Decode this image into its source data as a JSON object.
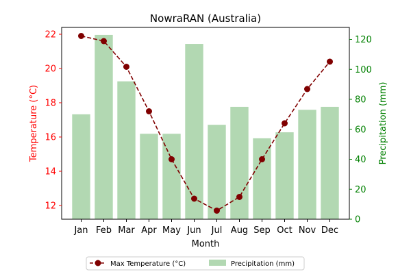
{
  "chart_data": {
    "type": "bar+line",
    "title": "NowraRAN (Australia)",
    "xlabel": "Month",
    "categories": [
      "Jan",
      "Feb",
      "Mar",
      "Apr",
      "May",
      "Jun",
      "Jul",
      "Aug",
      "Sep",
      "Oct",
      "Nov",
      "Dec"
    ],
    "left_axis": {
      "label": "Temperature (°C)",
      "color": "#ff0000",
      "ylim": [
        11.2,
        22.4
      ],
      "ticks": [
        12,
        14,
        16,
        18,
        20,
        22
      ]
    },
    "right_axis": {
      "label": "Precipitation (mm)",
      "color": "#008000",
      "ylim": [
        0,
        128
      ],
      "ticks": [
        0,
        20,
        40,
        60,
        80,
        100,
        120
      ]
    },
    "series": [
      {
        "name": "Max Temperature (°C)",
        "type": "line",
        "axis": "left",
        "color": "#800000",
        "linestyle": "dashed",
        "marker": "circle",
        "values": [
          21.9,
          21.6,
          20.1,
          17.5,
          14.7,
          12.4,
          11.7,
          12.5,
          14.7,
          16.8,
          18.8,
          20.4
        ]
      },
      {
        "name": "Precipitation (mm)",
        "type": "bar",
        "axis": "right",
        "color": "#b2d8b2",
        "values": [
          70,
          123,
          92,
          57,
          57,
          117,
          63,
          75,
          54,
          58,
          73,
          75
        ]
      }
    ],
    "legend": {
      "placement": "bottom-center",
      "columns": 2
    },
    "grid": false
  }
}
